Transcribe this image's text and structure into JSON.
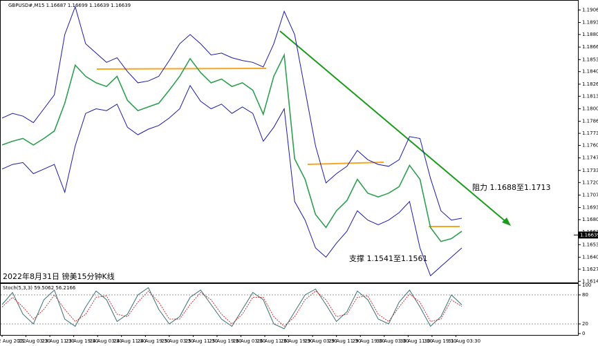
{
  "chart_data": [
    {
      "type": "line",
      "header": "GBPUSD#,M15 1.16687 1.16699 1.16639 1.16639",
      "title": "2022年8月31日 镑美15分钟K线",
      "annotations": [
        "阻力 1.1688至1.1713",
        "支撑 1.1541至1.1561"
      ],
      "current_price": 1.16639,
      "ylim": [
        1.1612,
        1.1915
      ],
      "yticks": [
        1.19065,
        {
          "value": 1.1893,
          "label": "1.18930"
        },
        {
          "value": 1.188,
          "label": "1.18800"
        },
        1.18665,
        {
          "value": 1.1853,
          "label": "1.18530"
        },
        {
          "value": 1.184,
          "label": "1.18400"
        },
        1.18265,
        1.18135,
        {
          "value": 1.18,
          "label": "1.18000"
        },
        1.17865,
        1.17735,
        1.17605,
        {
          "value": 1.1747,
          "label": "1.17470"
        },
        1.17335,
        1.17205,
        {
          "value": 1.1707,
          "label": "1.17070"
        },
        1.16935,
        1.16805,
        {
          "value": 1.1667,
          "label": "1.16670"
        },
        1.16535,
        {
          "value": 1.164,
          "label": "1.16400"
        },
        {
          "value": 1.1627,
          "label": "1.16270"
        },
        {
          "value": 1.1614,
          "label": "1.16140"
        }
      ],
      "time_labels": [
        "22 Aug 2022",
        "23 Aug 03:30",
        "23 Aug 11:30",
        "23 Aug 19:30",
        "24 Aug 03:30",
        "24 Aug 11:30",
        "24 Aug 19:30",
        "25 Aug 03:30",
        "25 Aug 11:30",
        "25 Aug 19:30",
        "26 Aug 03:30",
        "26 Aug 11:30",
        "26 Aug 19:30",
        "29 Aug 03:30",
        "29 Aug 11:30",
        "29 Aug 19:30",
        "30 Aug 03:30",
        "30 Aug 11:30",
        "30 Aug 19:30",
        "31 Aug 03:30"
      ],
      "series": [
        {
          "name": "Price",
          "color": "#2e9e50",
          "values": [
            1.1761,
            1.1765,
            1.1768,
            1.1761,
            1.1768,
            1.1776,
            1.1806,
            1.1847,
            1.1835,
            1.1828,
            1.1824,
            1.1835,
            1.1809,
            1.1798,
            1.1802,
            1.1806,
            1.182,
            1.1835,
            1.1854,
            1.1839,
            1.1828,
            1.1832,
            1.1824,
            1.1828,
            1.182,
            1.1794,
            1.1835,
            1.1858,
            1.1746,
            1.1724,
            1.1686,
            1.1672,
            1.169,
            1.1701,
            1.1724,
            1.1709,
            1.1705,
            1.1709,
            1.1716,
            1.1739,
            1.1724,
            1.1672,
            1.1657,
            1.166,
            1.1668
          ]
        },
        {
          "name": "Upper band",
          "color": "#1a1aa6",
          "values": [
            1.179,
            1.1795,
            1.1792,
            1.1785,
            1.18,
            1.1815,
            1.188,
            1.191,
            1.187,
            1.186,
            1.185,
            1.1855,
            1.184,
            1.1828,
            1.183,
            1.1835,
            1.1852,
            1.187,
            1.188,
            1.187,
            1.1858,
            1.186,
            1.1855,
            1.1852,
            1.185,
            1.1845,
            1.187,
            1.1905,
            1.188,
            1.182,
            1.176,
            1.172,
            1.173,
            1.1738,
            1.1755,
            1.1745,
            1.174,
            1.1738,
            1.1745,
            1.177,
            1.1768,
            1.1725,
            1.169,
            1.168,
            1.1682
          ]
        },
        {
          "name": "Lower band",
          "color": "#1a1aa6",
          "values": [
            1.1735,
            1.174,
            1.1742,
            1.173,
            1.1735,
            1.174,
            1.171,
            1.176,
            1.1795,
            1.18,
            1.1798,
            1.1805,
            1.178,
            1.1772,
            1.1778,
            1.1782,
            1.179,
            1.18,
            1.1825,
            1.1808,
            1.18,
            1.1805,
            1.1795,
            1.1802,
            1.1795,
            1.1765,
            1.178,
            1.18,
            1.17,
            1.168,
            1.165,
            1.164,
            1.1655,
            1.1668,
            1.169,
            1.168,
            1.1675,
            1.168,
            1.1688,
            1.17,
            1.165,
            1.162,
            1.163,
            1.164,
            1.165
          ]
        }
      ]
    },
    {
      "type": "line",
      "header": "Stoch(5,3,3) 59.5062 56.2166",
      "ylim": [
        0,
        100
      ],
      "yticks": [
        100,
        80,
        20,
        0
      ],
      "series": [
        {
          "name": "Main",
          "color": "#3c6e71",
          "values": [
            60,
            85,
            40,
            20,
            70,
            90,
            30,
            15,
            55,
            88,
            70,
            25,
            40,
            80,
            95,
            50,
            20,
            35,
            75,
            90,
            60,
            30,
            15,
            50,
            85,
            70,
            20,
            10,
            45,
            80,
            92,
            60,
            25,
            45,
            88,
            70,
            30,
            20,
            65,
            90,
            55,
            15,
            35,
            80,
            59.5
          ]
        },
        {
          "name": "Signal",
          "color": "#d03030",
          "values": [
            55,
            75,
            55,
            30,
            50,
            80,
            50,
            25,
            40,
            75,
            78,
            40,
            35,
            65,
            88,
            65,
            30,
            30,
            60,
            85,
            70,
            40,
            20,
            40,
            75,
            75,
            35,
            15,
            35,
            70,
            88,
            70,
            35,
            40,
            75,
            78,
            40,
            25,
            55,
            82,
            65,
            25,
            30,
            70,
            56.2
          ]
        }
      ]
    }
  ]
}
